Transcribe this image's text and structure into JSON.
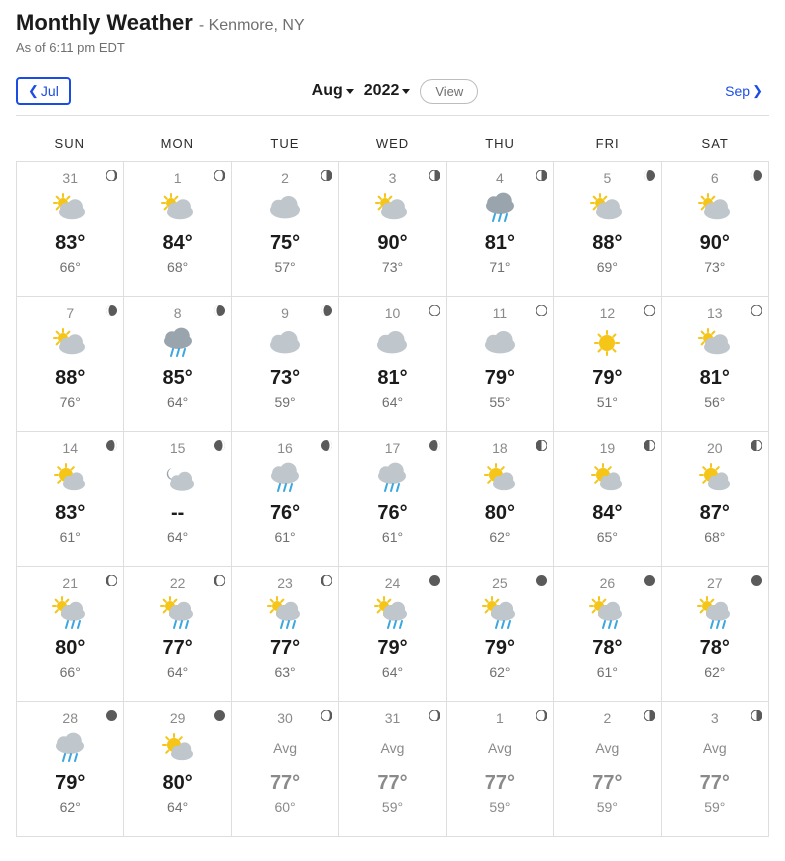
{
  "header": {
    "title": "Monthly Weather",
    "location_prefix": "- ",
    "location": "Kenmore, NY",
    "as_of": "As of 6:11 pm EDT"
  },
  "nav": {
    "prev_label": "Jul",
    "next_label": "Sep",
    "month": "Aug",
    "year": "2022",
    "view_label": "View"
  },
  "dow": [
    "SUN",
    "MON",
    "TUE",
    "WED",
    "THU",
    "FRI",
    "SAT"
  ],
  "colors": {
    "text": "#1b1b1b",
    "muted": "#6f6f6f",
    "faded": "#8a8a8a",
    "link": "#1b4de4",
    "border": "#dedede",
    "sun": "#f5c518",
    "cloud": "#bfc6cc",
    "cloud_dark": "#9aa4ad",
    "rain": "#3aa7e0",
    "moon_fill": "#5a5a5a"
  },
  "days": [
    {
      "num": "31",
      "icon": "partly-cloudy",
      "hi": "83°",
      "lo": "66°",
      "moon": "waxing-crescent",
      "avg": false,
      "faded": false
    },
    {
      "num": "1",
      "icon": "partly-cloudy",
      "hi": "84°",
      "lo": "68°",
      "moon": "waxing-crescent",
      "avg": false,
      "faded": false
    },
    {
      "num": "2",
      "icon": "cloudy",
      "hi": "75°",
      "lo": "57°",
      "moon": "first-quarter",
      "avg": false,
      "faded": false
    },
    {
      "num": "3",
      "icon": "partly-cloudy",
      "hi": "90°",
      "lo": "73°",
      "moon": "first-quarter",
      "avg": false,
      "faded": false
    },
    {
      "num": "4",
      "icon": "rain",
      "hi": "81°",
      "lo": "71°",
      "moon": "first-quarter",
      "avg": false,
      "faded": false
    },
    {
      "num": "5",
      "icon": "partly-cloudy",
      "hi": "88°",
      "lo": "69°",
      "moon": "waxing-gibbous",
      "avg": false,
      "faded": false
    },
    {
      "num": "6",
      "icon": "partly-cloudy",
      "hi": "90°",
      "lo": "73°",
      "moon": "waxing-gibbous",
      "avg": false,
      "faded": false
    },
    {
      "num": "7",
      "icon": "partly-cloudy",
      "hi": "88°",
      "lo": "76°",
      "moon": "waxing-gibbous",
      "avg": false,
      "faded": false
    },
    {
      "num": "8",
      "icon": "rain",
      "hi": "85°",
      "lo": "64°",
      "moon": "waxing-gibbous",
      "avg": false,
      "faded": false
    },
    {
      "num": "9",
      "icon": "cloudy",
      "hi": "73°",
      "lo": "59°",
      "moon": "waxing-gibbous",
      "avg": false,
      "faded": false
    },
    {
      "num": "10",
      "icon": "cloudy",
      "hi": "81°",
      "lo": "64°",
      "moon": "full",
      "avg": false,
      "faded": false
    },
    {
      "num": "11",
      "icon": "cloudy",
      "hi": "79°",
      "lo": "55°",
      "moon": "full",
      "avg": false,
      "faded": false
    },
    {
      "num": "12",
      "icon": "sunny",
      "hi": "79°",
      "lo": "51°",
      "moon": "full",
      "avg": false,
      "faded": false
    },
    {
      "num": "13",
      "icon": "partly-cloudy",
      "hi": "81°",
      "lo": "56°",
      "moon": "full",
      "avg": false,
      "faded": false
    },
    {
      "num": "14",
      "icon": "mostly-sunny",
      "hi": "83°",
      "lo": "61°",
      "moon": "waning-gibbous",
      "avg": false,
      "faded": false
    },
    {
      "num": "15",
      "icon": "night-cloudy",
      "hi": "--",
      "lo": "64°",
      "moon": "waning-gibbous",
      "avg": false,
      "faded": false
    },
    {
      "num": "16",
      "icon": "showers",
      "hi": "76°",
      "lo": "61°",
      "moon": "waning-gibbous",
      "avg": false,
      "faded": false
    },
    {
      "num": "17",
      "icon": "showers",
      "hi": "76°",
      "lo": "61°",
      "moon": "waning-gibbous",
      "avg": false,
      "faded": false
    },
    {
      "num": "18",
      "icon": "mostly-sunny",
      "hi": "80°",
      "lo": "62°",
      "moon": "last-quarter",
      "avg": false,
      "faded": false
    },
    {
      "num": "19",
      "icon": "mostly-sunny",
      "hi": "84°",
      "lo": "65°",
      "moon": "last-quarter",
      "avg": false,
      "faded": false
    },
    {
      "num": "20",
      "icon": "mostly-sunny",
      "hi": "87°",
      "lo": "68°",
      "moon": "last-quarter",
      "avg": false,
      "faded": false
    },
    {
      "num": "21",
      "icon": "scattered-showers",
      "hi": "80°",
      "lo": "66°",
      "moon": "waning-crescent",
      "avg": false,
      "faded": false
    },
    {
      "num": "22",
      "icon": "scattered-showers",
      "hi": "77°",
      "lo": "64°",
      "moon": "waning-crescent",
      "avg": false,
      "faded": false
    },
    {
      "num": "23",
      "icon": "scattered-showers",
      "hi": "77°",
      "lo": "63°",
      "moon": "waning-crescent",
      "avg": false,
      "faded": false
    },
    {
      "num": "24",
      "icon": "scattered-showers",
      "hi": "79°",
      "lo": "64°",
      "moon": "new",
      "avg": false,
      "faded": false
    },
    {
      "num": "25",
      "icon": "scattered-showers",
      "hi": "79°",
      "lo": "62°",
      "moon": "new",
      "avg": false,
      "faded": false
    },
    {
      "num": "26",
      "icon": "scattered-showers",
      "hi": "78°",
      "lo": "61°",
      "moon": "new",
      "avg": false,
      "faded": false
    },
    {
      "num": "27",
      "icon": "scattered-showers",
      "hi": "78°",
      "lo": "62°",
      "moon": "new",
      "avg": false,
      "faded": false
    },
    {
      "num": "28",
      "icon": "showers",
      "hi": "79°",
      "lo": "62°",
      "moon": "new",
      "avg": false,
      "faded": false
    },
    {
      "num": "29",
      "icon": "mostly-sunny",
      "hi": "80°",
      "lo": "64°",
      "moon": "new",
      "avg": false,
      "faded": false
    },
    {
      "num": "30",
      "icon": "",
      "hi": "77°",
      "lo": "60°",
      "moon": "waxing-crescent",
      "avg": true,
      "faded": true,
      "avg_label": "Avg"
    },
    {
      "num": "31",
      "icon": "",
      "hi": "77°",
      "lo": "59°",
      "moon": "waxing-crescent",
      "avg": true,
      "faded": true,
      "avg_label": "Avg"
    },
    {
      "num": "1",
      "icon": "",
      "hi": "77°",
      "lo": "59°",
      "moon": "waxing-crescent",
      "avg": true,
      "faded": true,
      "avg_label": "Avg"
    },
    {
      "num": "2",
      "icon": "",
      "hi": "77°",
      "lo": "59°",
      "moon": "first-quarter",
      "avg": true,
      "faded": true,
      "avg_label": "Avg"
    },
    {
      "num": "3",
      "icon": "",
      "hi": "77°",
      "lo": "59°",
      "moon": "first-quarter",
      "avg": true,
      "faded": true,
      "avg_label": "Avg"
    }
  ]
}
